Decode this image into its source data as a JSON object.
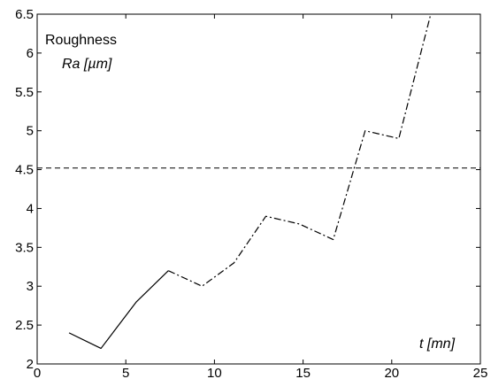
{
  "chart_data": {
    "type": "line",
    "annotations": {
      "title": "Roughness",
      "ylabel": "Ra [µm]",
      "xlabel": "t [mn]"
    },
    "xlim": [
      0,
      25
    ],
    "ylim": [
      2,
      6.5
    ],
    "xticks": [
      0,
      5,
      10,
      15,
      20,
      25
    ],
    "yticks": [
      2,
      2.5,
      3,
      3.5,
      4,
      4.5,
      5,
      5.5,
      6,
      6.5
    ],
    "grid": false,
    "threshold": {
      "y": 4.52,
      "style": "dashed"
    },
    "series": [
      {
        "style": "solid",
        "x": [
          1.8,
          3.6,
          5.6,
          7.4
        ],
        "y": [
          2.4,
          2.2,
          2.8,
          3.2
        ]
      },
      {
        "style": "dash-dot",
        "x": [
          7.4,
          9.3,
          11.1,
          12.9,
          14.8,
          16.7,
          18.5,
          20.4,
          22.2
        ],
        "y": [
          3.2,
          3.0,
          3.3,
          3.9,
          3.8,
          3.6,
          5.0,
          4.9,
          6.5
        ]
      }
    ]
  }
}
